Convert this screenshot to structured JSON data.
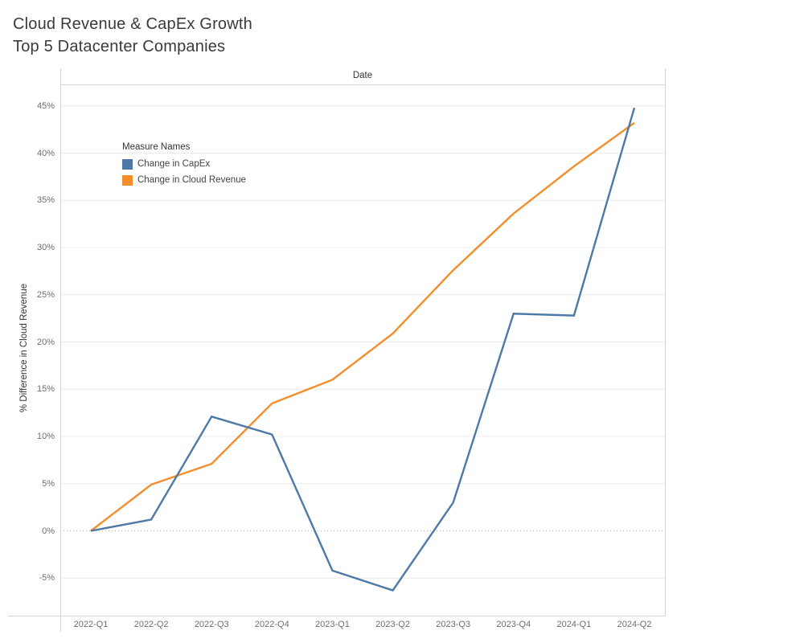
{
  "title": {
    "line1": "Cloud Revenue & CapEx Growth",
    "line2": "Top 5 Datacenter Companies"
  },
  "chart_data": {
    "type": "line",
    "x_header": "Date",
    "ylabel": "% Difference in Cloud Revenue",
    "legend_title": "Measure Names",
    "legend_position": "inside-top-left",
    "grid": true,
    "zero_line_dotted": true,
    "categories": [
      "2022-Q1",
      "2022-Q2",
      "2022-Q3",
      "2022-Q4",
      "2023-Q1",
      "2023-Q2",
      "2023-Q3",
      "2023-Q4",
      "2024-Q1",
      "2024-Q2"
    ],
    "series": [
      {
        "name": "Change in CapEx",
        "color": "#4e79a7",
        "values": [
          0.0,
          1.2,
          12.1,
          10.2,
          -4.2,
          -6.3,
          3.0,
          23.0,
          22.8,
          44.8
        ]
      },
      {
        "name": "Change in Cloud Revenue",
        "color": "#f28e2b",
        "values": [
          0.0,
          4.9,
          7.1,
          13.5,
          16.0,
          20.9,
          27.6,
          33.6,
          38.6,
          43.2
        ]
      }
    ],
    "yticks": [
      {
        "value": -5,
        "label": "-5%"
      },
      {
        "value": 0,
        "label": "0%"
      },
      {
        "value": 5,
        "label": "5%"
      },
      {
        "value": 10,
        "label": "10%"
      },
      {
        "value": 15,
        "label": "15%"
      },
      {
        "value": 20,
        "label": "20%"
      },
      {
        "value": 25,
        "label": "25%"
      },
      {
        "value": 30,
        "label": "30%"
      },
      {
        "value": 35,
        "label": "35%"
      },
      {
        "value": 40,
        "label": "40%"
      },
      {
        "value": 45,
        "label": "45%"
      }
    ],
    "ylim": [
      -9.0,
      47.3
    ],
    "unit": "%"
  },
  "colors": {
    "capex_line": "#4e79a7",
    "cloud_revenue_line": "#f28e2b",
    "gridline": "#ececec",
    "zero_line": "#b0b0b0",
    "plot_border": "#d4d4d4",
    "tick_text": "#6e6e6e",
    "title_text": "#3a3a3a"
  }
}
